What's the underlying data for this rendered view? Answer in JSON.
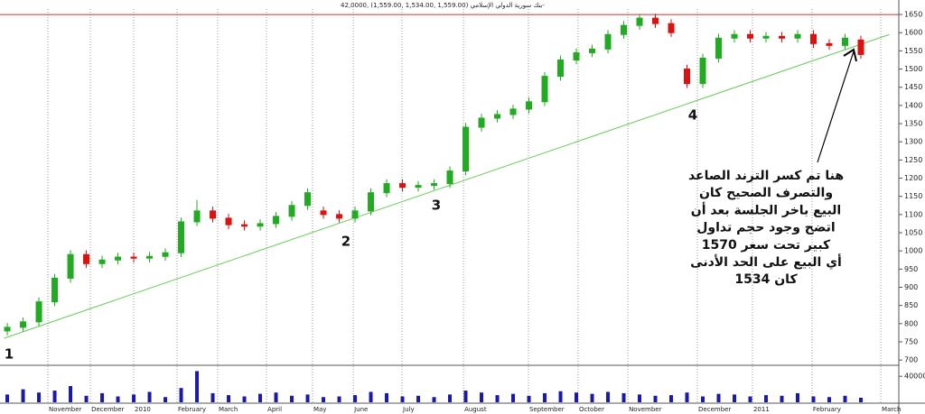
{
  "chart_data": {
    "type": "candlestick",
    "title": "بنك سورية الدولي الإسلامي (1,559.00 ,1,534.00 ,1,559.00) ,42,0000-",
    "open": [
      780,
      790,
      805,
      860,
      925,
      990,
      965,
      975,
      983,
      980,
      985,
      995,
      1080,
      1110,
      1090,
      1072,
      1068,
      1075,
      1095,
      1125,
      1110,
      1100,
      1090,
      1110,
      1160,
      1185,
      1175,
      1180,
      1185,
      1220,
      1340,
      1365,
      1375,
      1390,
      1410,
      1480,
      1525,
      1545,
      1555,
      1595,
      1620,
      1640,
      1625,
      1500,
      1460,
      1530,
      1585,
      1595,
      1585,
      1590,
      1585,
      1595,
      1570,
      1565,
      1580
    ],
    "high": [
      802,
      817,
      872,
      937,
      1002,
      1002,
      987,
      995,
      995,
      997,
      1007,
      1092,
      1140,
      1122,
      1102,
      1084,
      1087,
      1107,
      1137,
      1172,
      1122,
      1112,
      1122,
      1172,
      1197,
      1197,
      1192,
      1197,
      1232,
      1352,
      1377,
      1387,
      1402,
      1422,
      1492,
      1537,
      1557,
      1567,
      1607,
      1632,
      1652,
      1652,
      1637,
      1512,
      1542,
      1597,
      1607,
      1607,
      1602,
      1602,
      1607,
      1607,
      1582,
      1597,
      1592
    ],
    "low": [
      768,
      778,
      793,
      848,
      913,
      953,
      953,
      963,
      968,
      968,
      973,
      983,
      1068,
      1078,
      1060,
      1056,
      1056,
      1063,
      1083,
      1113,
      1088,
      1078,
      1078,
      1098,
      1148,
      1163,
      1163,
      1168,
      1173,
      1208,
      1328,
      1353,
      1363,
      1378,
      1398,
      1468,
      1513,
      1533,
      1543,
      1583,
      1608,
      1613,
      1588,
      1448,
      1448,
      1518,
      1573,
      1573,
      1573,
      1573,
      1573,
      1558,
      1553,
      1553,
      1528
    ],
    "close": [
      790,
      805,
      860,
      925,
      990,
      965,
      975,
      983,
      980,
      985,
      995,
      1080,
      1110,
      1090,
      1072,
      1068,
      1075,
      1095,
      1125,
      1160,
      1100,
      1090,
      1110,
      1160,
      1185,
      1175,
      1180,
      1185,
      1220,
      1340,
      1365,
      1375,
      1390,
      1410,
      1480,
      1525,
      1545,
      1555,
      1595,
      1620,
      1640,
      1625,
      1600,
      1460,
      1530,
      1585,
      1595,
      1585,
      1590,
      1585,
      1595,
      1570,
      1565,
      1585,
      1540
    ],
    "volume": [
      12000,
      20000,
      15000,
      18000,
      25000,
      10000,
      14000,
      9000,
      12000,
      16000,
      8000,
      22000,
      48000,
      14000,
      11000,
      9000,
      13000,
      15000,
      10000,
      12000,
      8000,
      9000,
      11000,
      16000,
      14000,
      9000,
      10000,
      8000,
      12000,
      18000,
      15000,
      11000,
      13000,
      10000,
      14000,
      17000,
      15000,
      13000,
      16000,
      14000,
      12000,
      10000,
      11000,
      15000,
      9000,
      13000,
      12000,
      9000,
      11000,
      10000,
      14000,
      9000,
      8000,
      10000,
      7000
    ],
    "up_color": "#22aa22",
    "down_color": "#dd1111",
    "volume_color": "#1a1aa8",
    "ylim": [
      688,
      1670
    ],
    "yticks": [
      700,
      750,
      800,
      850,
      900,
      950,
      1000,
      1050,
      1100,
      1150,
      1200,
      1250,
      1300,
      1350,
      1400,
      1450,
      1500,
      1550,
      1600,
      1650
    ],
    "xlim": [
      -0.46,
      56.4
    ],
    "xticks": [
      {
        "value": 2.57,
        "label": "November"
      },
      {
        "value": 5.26,
        "label": "December"
      },
      {
        "value": 8,
        "label": "2010"
      },
      {
        "value": 10.74,
        "label": "February"
      },
      {
        "value": 13.31,
        "label": "March"
      },
      {
        "value": 16.4,
        "label": "April"
      },
      {
        "value": 19.31,
        "label": "May"
      },
      {
        "value": 21.89,
        "label": "June"
      },
      {
        "value": 24.97,
        "label": "July"
      },
      {
        "value": 28.86,
        "label": "August"
      },
      {
        "value": 32.97,
        "label": "September"
      },
      {
        "value": 36.11,
        "label": "October"
      },
      {
        "value": 39.26,
        "label": "November"
      },
      {
        "value": 43.66,
        "label": "December"
      },
      {
        "value": 47.14,
        "label": "2011"
      },
      {
        "value": 50.91,
        "label": "February"
      },
      {
        "value": 55.26,
        "label": "March"
      }
    ],
    "volume_lim": [
      0,
      50000
    ],
    "volume_ticks": [
      40000
    ],
    "trendline": {
      "x": [
        -0.2,
        55.8
      ],
      "values": [
        760,
        1595
      ],
      "color": "#66cc55"
    },
    "resistance": {
      "value": 1650,
      "color": "#cc3333"
    },
    "markers": [
      "1",
      "2",
      "3",
      "4"
    ],
    "annotation": [
      "هنا تم كسر الترند الصاعد",
      "والتصرف الصحيح كان",
      "البيع باخر الجلسة بعد أن",
      "اتضح وجود حجم تداول",
      "كبير تحت سعر 1570",
      "أي البيع على الحد الأدنى",
      "كان 1534"
    ]
  }
}
